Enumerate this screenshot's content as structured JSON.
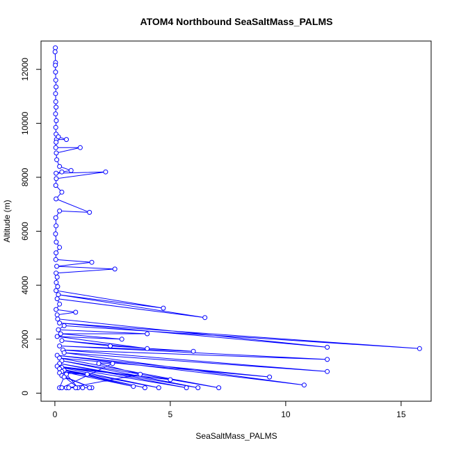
{
  "chart_data": {
    "type": "line",
    "title": "ATOM4 Northbound SeaSaltMass_PALMS",
    "xlabel": "SeaSaltMass_PALMS",
    "ylabel": "Altitude (m)",
    "xlim": [
      -0.6,
      16.3
    ],
    "ylim": [
      -300,
      13050
    ],
    "xticks": [
      0,
      5,
      10,
      15
    ],
    "yticks": [
      0,
      2000,
      4000,
      6000,
      8000,
      10000,
      12000
    ],
    "grid": false,
    "legend": "none",
    "color": "#0000ff",
    "marker": "open-circle",
    "series": [
      {
        "points": [
          [
            0.02,
            12800
          ],
          [
            0.01,
            12650
          ],
          [
            0.03,
            12250
          ],
          [
            0.02,
            12150
          ],
          [
            0.03,
            11900
          ],
          [
            0.04,
            11600
          ],
          [
            0.05,
            11350
          ],
          [
            0.03,
            11100
          ],
          [
            0.04,
            10800
          ],
          [
            0.05,
            10600
          ],
          [
            0.03,
            10350
          ],
          [
            0.06,
            10100
          ],
          [
            0.04,
            9850
          ],
          [
            0.05,
            9600
          ],
          [
            0.07,
            9400
          ],
          [
            0.5,
            9400
          ],
          [
            0.15,
            9500
          ],
          [
            0.05,
            9300
          ],
          [
            0.04,
            9100
          ],
          [
            1.1,
            9100
          ],
          [
            0.06,
            8900
          ],
          [
            0.08,
            8650
          ],
          [
            0.2,
            8400
          ],
          [
            0.7,
            8250
          ],
          [
            0.3,
            8200
          ],
          [
            0.05,
            8150
          ],
          [
            2.2,
            8200
          ],
          [
            0.06,
            7950
          ],
          [
            0.04,
            7700
          ],
          [
            0.3,
            7450
          ],
          [
            0.05,
            7200
          ],
          [
            1.5,
            6700
          ],
          [
            0.2,
            6750
          ],
          [
            0.04,
            6500
          ],
          [
            0.05,
            6200
          ],
          [
            0.03,
            5900
          ],
          [
            0.06,
            5600
          ],
          [
            0.2,
            5400
          ],
          [
            0.05,
            5200
          ],
          [
            0.04,
            4950
          ],
          [
            1.6,
            4850
          ],
          [
            0.08,
            4700
          ],
          [
            2.6,
            4600
          ],
          [
            0.05,
            4450
          ],
          [
            0.1,
            4300
          ],
          [
            0.06,
            4100
          ],
          [
            0.12,
            3950
          ],
          [
            0.05,
            3800
          ],
          [
            4.7,
            3150
          ],
          [
            0.15,
            3650
          ],
          [
            6.5,
            2800
          ],
          [
            0.1,
            3500
          ],
          [
            0.2,
            3300
          ],
          [
            0.05,
            3100
          ],
          [
            0.9,
            3000
          ],
          [
            0.1,
            2900
          ],
          [
            0.12,
            2750
          ],
          [
            11.8,
            1700
          ],
          [
            0.2,
            2600
          ],
          [
            15.8,
            1650
          ],
          [
            0.4,
            2500
          ],
          [
            0.15,
            2350
          ],
          [
            4.0,
            2200
          ],
          [
            0.25,
            2200
          ],
          [
            2.9,
            2000
          ],
          [
            0.1,
            2100
          ],
          [
            4.0,
            1650
          ],
          [
            0.3,
            1950
          ],
          [
            2.4,
            1750
          ],
          [
            6.0,
            1550
          ],
          [
            0.2,
            1750
          ],
          [
            11.8,
            1250
          ],
          [
            0.35,
            1600
          ],
          [
            11.8,
            800
          ],
          [
            0.4,
            1500
          ],
          [
            10.8,
            300
          ],
          [
            0.1,
            1400
          ],
          [
            9.3,
            600
          ],
          [
            0.2,
            1300
          ],
          [
            7.1,
            200
          ],
          [
            0.3,
            1200
          ],
          [
            6.2,
            200
          ],
          [
            0.2,
            1100
          ],
          [
            5.7,
            200
          ],
          [
            0.1,
            1000
          ],
          [
            5.0,
            500
          ],
          [
            0.3,
            950
          ],
          [
            4.5,
            200
          ],
          [
            0.2,
            900
          ],
          [
            3.9,
            200
          ],
          [
            0.4,
            850
          ],
          [
            3.4,
            250
          ],
          [
            0.3,
            800
          ],
          [
            1.4,
            700
          ],
          [
            0.2,
            750
          ],
          [
            1.0,
            200
          ],
          [
            0.5,
            700
          ],
          [
            0.3,
            650
          ],
          [
            1.6,
            200
          ],
          [
            0.4,
            600
          ],
          [
            0.2,
            200
          ],
          [
            1.2,
            200
          ],
          [
            0.5,
            200
          ],
          [
            0.3,
            200
          ],
          [
            2.5,
            1100
          ],
          [
            1.9,
            1100
          ],
          [
            3.7,
            700
          ],
          [
            0.6,
            200
          ],
          [
            1.5,
            200
          ],
          [
            0.9,
            200
          ]
        ]
      }
    ]
  }
}
